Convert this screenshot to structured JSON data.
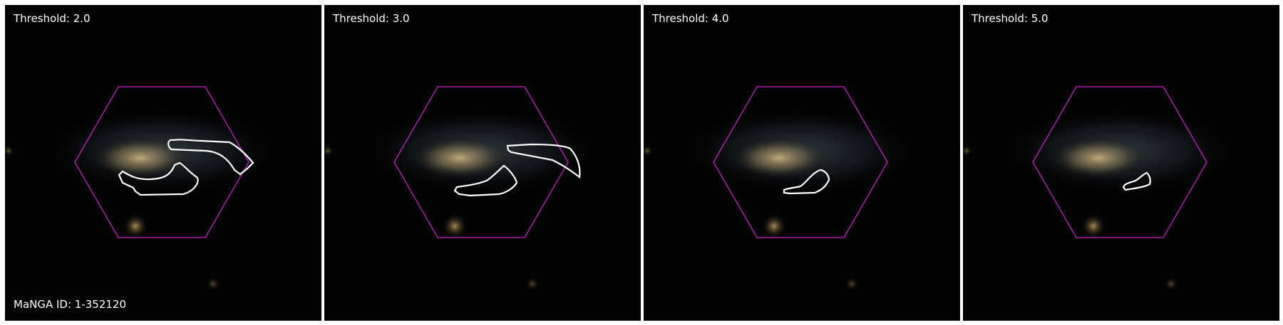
{
  "panels": [
    {
      "threshold_label": "Threshold: 2.0"
    },
    {
      "threshold_label": "Threshold: 3.0"
    },
    {
      "threshold_label": "Threshold: 4.0"
    },
    {
      "threshold_label": "Threshold: 5.0"
    }
  ],
  "manga_id_label": "MaNGA ID: 1-352120",
  "colors": {
    "hexagon": "#c020c0",
    "contour": "#ffffff",
    "background": "#030303",
    "separator": "#ffffff"
  }
}
